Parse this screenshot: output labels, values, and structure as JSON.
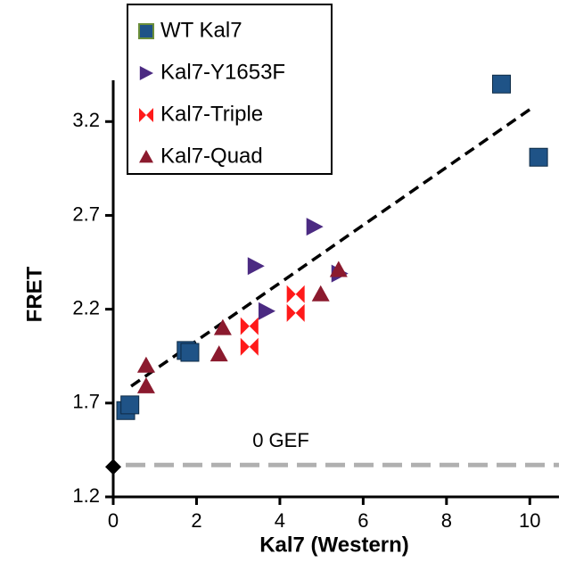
{
  "chart_data": {
    "type": "scatter",
    "x_label": "Kal7 (Western)",
    "y_label": "FRET",
    "xlim": [
      0,
      10.7
    ],
    "ylim": [
      1.2,
      3.42
    ],
    "xticks": [
      0,
      2,
      4,
      6,
      8,
      10
    ],
    "yticks": [
      1.2,
      1.7,
      2.2,
      2.7,
      3.2
    ],
    "legend": "upper left",
    "series": [
      {
        "name": "WT Kal7",
        "color": "#1f5387",
        "marker": "square",
        "x": [
          0.3,
          0.4,
          1.75,
          1.84,
          9.32,
          10.21
        ],
        "values": [
          1.66,
          1.69,
          1.98,
          1.97,
          3.4,
          3.01
        ]
      },
      {
        "name": "Kal7-Y1653F",
        "color": "#4b2a82",
        "marker": "triangle-right",
        "x": [
          3.42,
          4.83,
          3.68,
          5.43
        ],
        "values": [
          2.43,
          2.64,
          2.19,
          2.39
        ]
      },
      {
        "name": "Kal7-Triple",
        "color": "#ff1a1a",
        "marker": "bowtie",
        "x": [
          3.27,
          3.27,
          4.38,
          4.38
        ],
        "values": [
          2.11,
          2.0,
          2.28,
          2.18
        ]
      },
      {
        "name": "Kal7-Quad",
        "color": "#8b1a2e",
        "marker": "triangle-up",
        "x": [
          0.79,
          0.79,
          2.63,
          2.54,
          4.98,
          5.41
        ],
        "values": [
          1.9,
          1.79,
          2.1,
          1.96,
          2.28,
          2.41
        ]
      }
    ],
    "zero_point": {
      "x": 0,
      "y": 1.36,
      "color": "#000000"
    },
    "trend_line": {
      "x": [
        0.43,
        10.1
      ],
      "y": [
        1.79,
        3.28
      ],
      "color": "#000000"
    },
    "reference_line": {
      "y": 1.37,
      "x": [
        0.3,
        10.7
      ],
      "label": "0 GEF",
      "color": "#b0b0b0"
    }
  }
}
